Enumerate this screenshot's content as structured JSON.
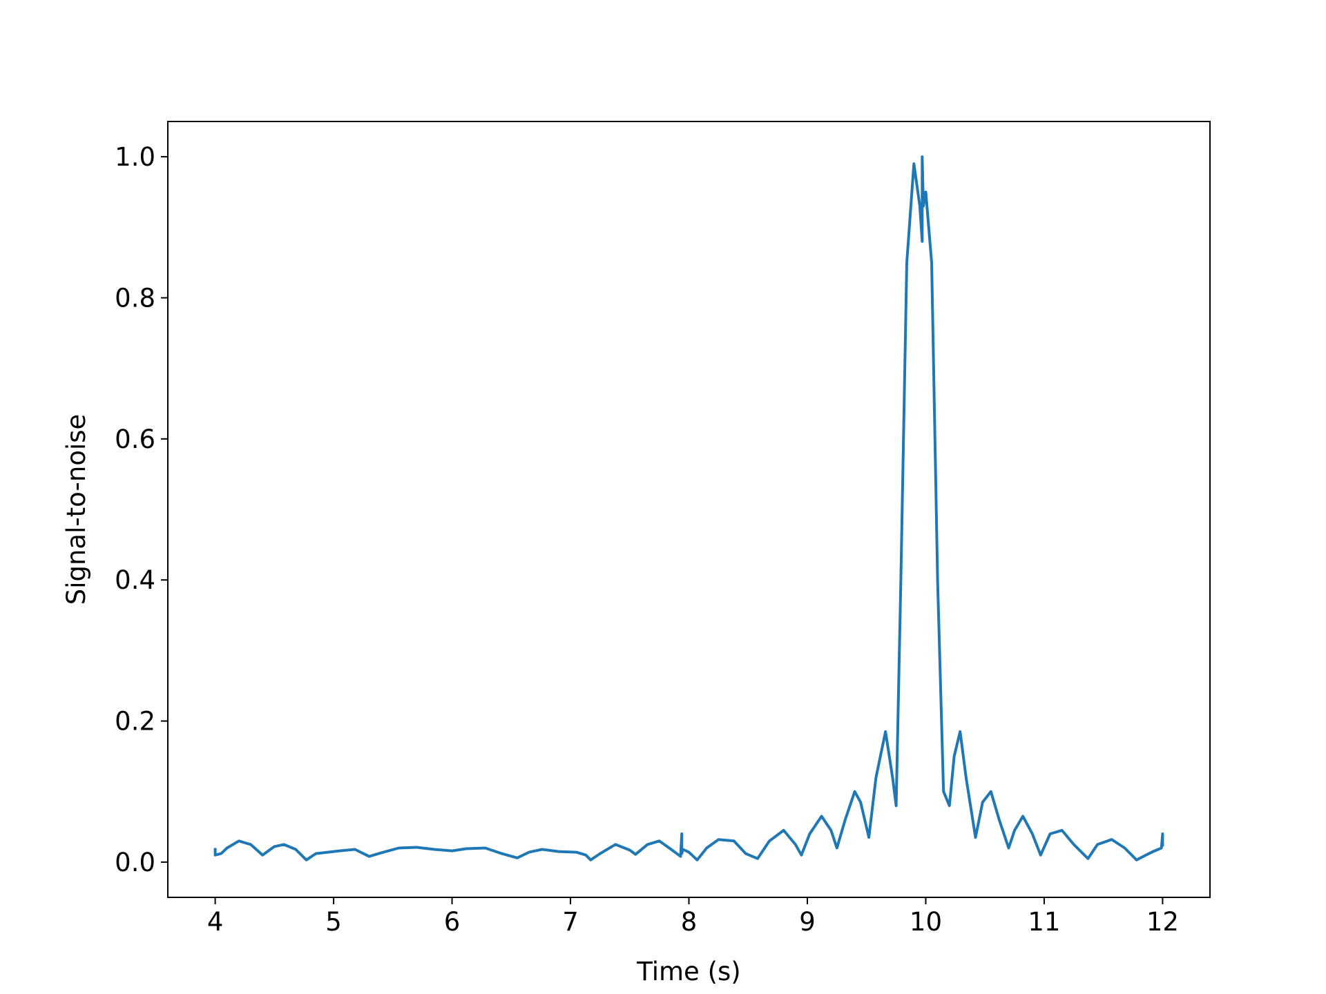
{
  "chart_data": {
    "type": "line",
    "title": "",
    "xlabel": "Time (s)",
    "ylabel": "Signal-to-noise",
    "xlim": [
      3.6,
      12.4
    ],
    "ylim": [
      -0.05,
      1.05
    ],
    "xticks": [
      4,
      5,
      6,
      7,
      8,
      9,
      10,
      11,
      12
    ],
    "xtick_labels": [
      "4",
      "5",
      "6",
      "7",
      "8",
      "9",
      "10",
      "11",
      "12"
    ],
    "yticks": [
      0.0,
      0.2,
      0.4,
      0.6,
      0.8,
      1.0
    ],
    "ytick_labels": [
      "0.0",
      "0.2",
      "0.4",
      "0.6",
      "0.8",
      "1.0"
    ],
    "grid": false,
    "legend": false,
    "series": [
      {
        "color": "#1f77b4",
        "x": [
          4.0,
          4.0,
          4.05,
          4.1,
          4.2,
          4.3,
          4.4,
          4.5,
          4.58,
          4.68,
          4.77,
          4.85,
          4.95,
          5.05,
          5.18,
          5.3,
          5.4,
          5.55,
          5.7,
          5.85,
          6.0,
          6.12,
          6.28,
          6.42,
          6.55,
          6.65,
          6.76,
          6.9,
          7.05,
          7.13,
          7.17,
          7.25,
          7.38,
          7.5,
          7.55,
          7.65,
          7.75,
          7.85,
          7.93,
          7.94,
          7.94,
          7.95,
          8.0,
          8.07,
          8.15,
          8.25,
          8.38,
          8.48,
          8.58,
          8.68,
          8.8,
          8.9,
          8.95,
          9.02,
          9.12,
          9.2,
          9.25,
          9.32,
          9.4,
          9.45,
          9.52,
          9.58,
          9.66,
          9.72,
          9.75,
          9.79,
          9.84,
          9.9,
          9.95,
          9.97,
          9.97,
          9.98,
          10.0,
          10.05,
          10.1,
          10.15,
          10.2,
          10.24,
          10.29,
          10.34,
          10.42,
          10.48,
          10.55,
          10.62,
          10.7,
          10.75,
          10.82,
          10.9,
          10.97,
          11.05,
          11.15,
          11.25,
          11.37,
          11.45,
          11.57,
          11.68,
          11.78,
          11.86,
          11.92,
          11.99,
          12.0,
          12.0
        ],
        "y": [
          0.02,
          0.01,
          0.012,
          0.02,
          0.03,
          0.025,
          0.01,
          0.022,
          0.025,
          0.018,
          0.003,
          0.012,
          0.014,
          0.016,
          0.018,
          0.008,
          0.013,
          0.02,
          0.021,
          0.018,
          0.016,
          0.019,
          0.02,
          0.012,
          0.006,
          0.014,
          0.018,
          0.015,
          0.014,
          0.01,
          0.003,
          0.012,
          0.025,
          0.017,
          0.011,
          0.025,
          0.03,
          0.018,
          0.008,
          0.04,
          0.012,
          0.018,
          0.014,
          0.003,
          0.02,
          0.032,
          0.03,
          0.012,
          0.005,
          0.03,
          0.045,
          0.025,
          0.01,
          0.04,
          0.065,
          0.045,
          0.02,
          0.06,
          0.1,
          0.085,
          0.035,
          0.12,
          0.185,
          0.12,
          0.08,
          0.4,
          0.85,
          0.99,
          0.93,
          0.88,
          1.0,
          0.93,
          0.95,
          0.85,
          0.4,
          0.1,
          0.08,
          0.15,
          0.185,
          0.12,
          0.035,
          0.085,
          0.1,
          0.06,
          0.02,
          0.045,
          0.065,
          0.04,
          0.01,
          0.04,
          0.045,
          0.025,
          0.005,
          0.025,
          0.032,
          0.02,
          0.003,
          0.01,
          0.015,
          0.02,
          0.04,
          0.022
        ]
      }
    ]
  }
}
